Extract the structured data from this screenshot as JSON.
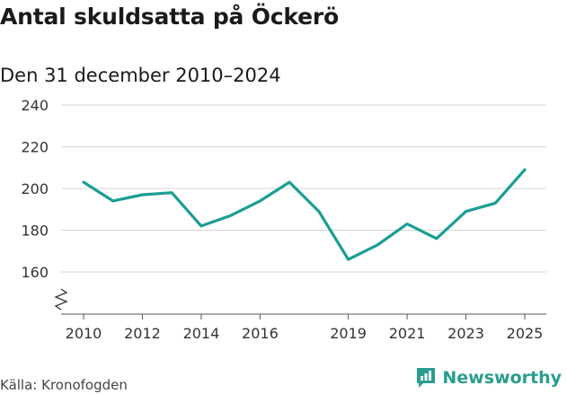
{
  "header": {
    "title": "Antal skuldsatta på Öckerö",
    "subtitle": "Den 31 december 2010–2024"
  },
  "footer": {
    "source": "Källa: Kronofogden",
    "brand": "Newsworthy"
  },
  "colors": {
    "line": "#1a9e93",
    "grid": "#d6d6d6",
    "brand": "#2a9d8f"
  },
  "chart_data": {
    "type": "line",
    "title": "Antal skuldsatta på Öckerö",
    "subtitle": "Den 31 december 2010–2024",
    "x": [
      2010,
      2011,
      2012,
      2013,
      2014,
      2015,
      2016,
      2017,
      2018,
      2019,
      2020,
      2021,
      2022,
      2023,
      2024,
      2025
    ],
    "series": [
      {
        "values": [
          203,
          194,
          197,
          198,
          182,
          187,
          194,
          203,
          189,
          166,
          173,
          183,
          176,
          189,
          193,
          209
        ]
      }
    ],
    "xticks": [
      "2010",
      "2012",
      "2014",
      "2016",
      "2019",
      "2021",
      "2023",
      "2025"
    ],
    "xtick_values": [
      2010,
      2012,
      2014,
      2016,
      2019,
      2021,
      2023,
      2025
    ],
    "yticks": [
      "160",
      "180",
      "200",
      "220",
      "240"
    ],
    "ytick_values": [
      160,
      180,
      200,
      220,
      240
    ],
    "ylim": [
      160,
      240
    ],
    "xlim": [
      2010,
      2025
    ],
    "axis_break": true,
    "grid": true
  }
}
